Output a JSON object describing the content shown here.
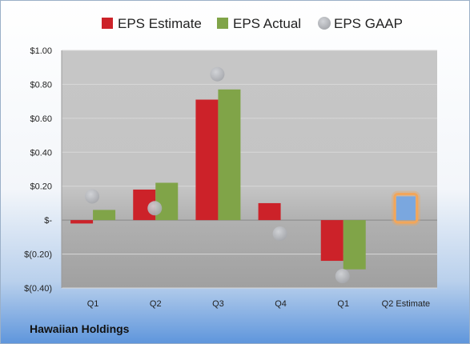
{
  "company": "Hawaiian Holdings",
  "chart_data": {
    "type": "bar",
    "categories": [
      "Q1",
      "Q2",
      "Q3",
      "Q4",
      "Q1",
      "Q2 Estimate"
    ],
    "ylim": [
      -0.4,
      1.0
    ],
    "y_ticks": [
      {
        "value": 1.0,
        "label": "$1.00"
      },
      {
        "value": 0.8,
        "label": "$0.80"
      },
      {
        "value": 0.6,
        "label": "$0.60"
      },
      {
        "value": 0.4,
        "label": "$0.40"
      },
      {
        "value": 0.2,
        "label": "$0.20"
      },
      {
        "value": 0.0,
        "label": "$-"
      },
      {
        "value": -0.2,
        "label": "$(0.20)"
      },
      {
        "value": -0.4,
        "label": "$(0.40)"
      }
    ],
    "grid": true,
    "legend_position": "top",
    "series": [
      {
        "name": "EPS Estimate",
        "kind": "bar",
        "color": "#cc2229",
        "values": [
          -0.02,
          0.18,
          0.71,
          0.1,
          -0.24,
          null
        ]
      },
      {
        "name": "EPS Actual",
        "kind": "bar",
        "color": "#80a448",
        "values": [
          0.06,
          0.22,
          0.77,
          null,
          -0.29,
          null
        ]
      },
      {
        "name": "EPS GAAP",
        "kind": "marker",
        "color": "#b4b6bb",
        "values": [
          0.14,
          0.07,
          0.86,
          -0.08,
          -0.33,
          null
        ]
      }
    ],
    "estimate_bar": {
      "category": "Q2 Estimate",
      "value": 0.14,
      "color": "#7aa7df",
      "highlight": "#f2a65a"
    }
  }
}
